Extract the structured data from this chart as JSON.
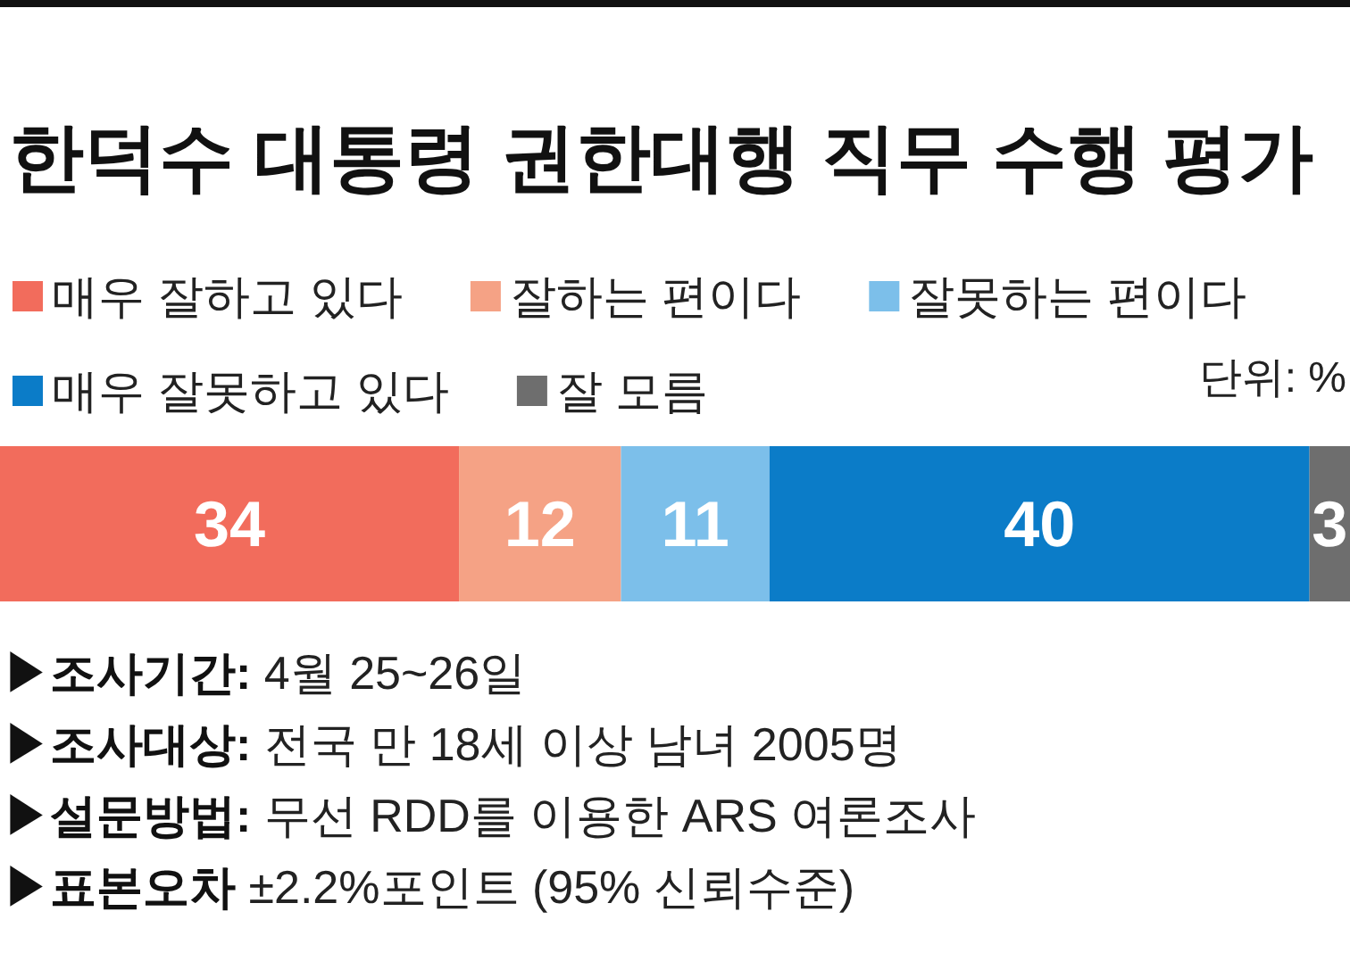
{
  "chart_data": {
    "type": "bar",
    "orientation": "horizontal",
    "stacked": true,
    "data_labels": true,
    "legend": "top",
    "title": "한덕수 대통령 권한대행 직무 수행 평가",
    "categories": [
      null
    ],
    "series": [
      {
        "name": "매우 잘하고 있다",
        "color": "#f26c5c",
        "values": [
          34
        ]
      },
      {
        "name": "잘하는 편이다",
        "color": "#f5a285",
        "values": [
          12
        ]
      },
      {
        "name": "잘못하는 편이다",
        "color": "#7cbfea",
        "values": [
          11
        ]
      },
      {
        "name": "매우 잘못하고 있다",
        "color": "#0b7cc8",
        "values": [
          40
        ]
      },
      {
        "name": "잘 모름",
        "color": "#6e6e6e",
        "values": [
          3
        ]
      }
    ],
    "annotations": [
      "단위: %",
      "▶조사기간: 4월 25~26일",
      "▶조사대상: 전국 만 18세 이상 남녀 2005명",
      "▶설문방법: 무선 RDD를 이용한 ARS 여론조사",
      "▶표본오차 ±2.2%포인트 (95% 신뢰수준)"
    ]
  }
}
